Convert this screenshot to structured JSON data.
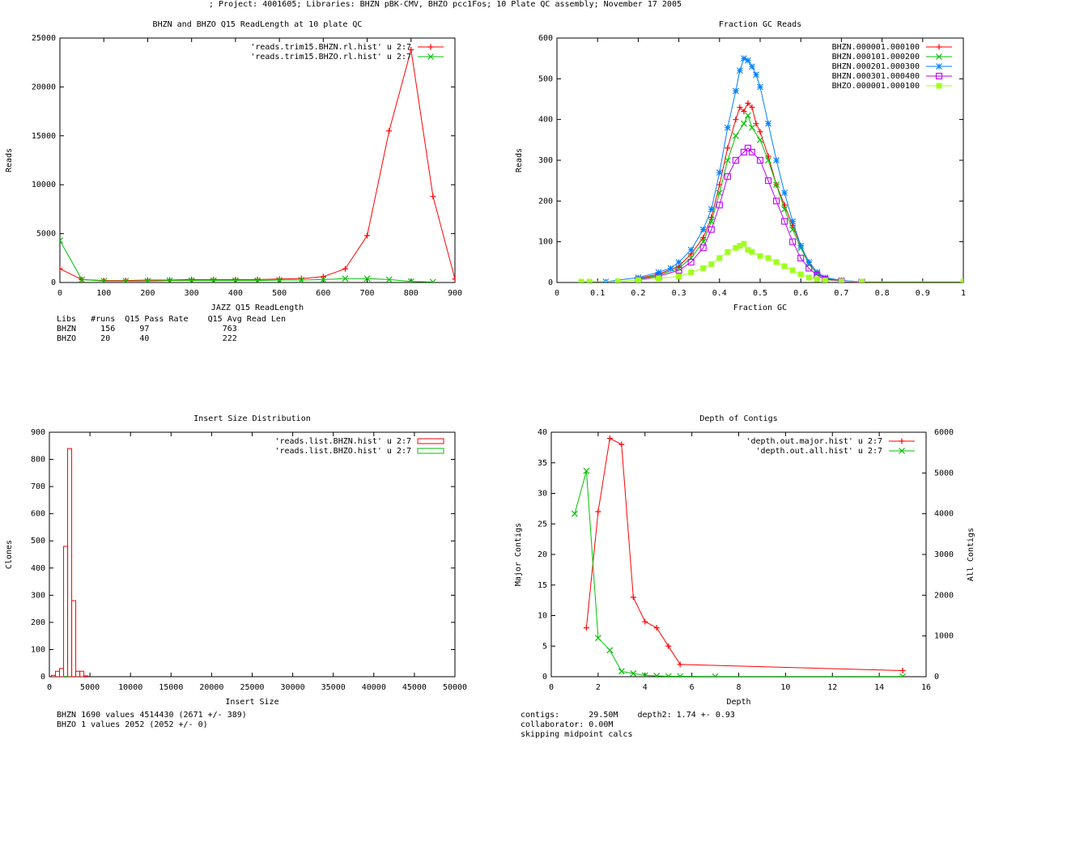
{
  "page_title": "; Project: 4001605; Libraries: BHZN pBK-CMV, BHZO pcc1Fos; 10 Plate QC assembly; November 17 2005",
  "colors": {
    "red": "#ff0000",
    "green": "#00c000",
    "blue": "#0080ff",
    "magenta": "#c000ff",
    "lime": "#a0ff20"
  },
  "chart_data": [
    {
      "id": "readlength",
      "type": "line",
      "title": "BHZN and BHZO Q15 ReadLength at 10 plate QC",
      "xlabel": "JAZZ Q15 ReadLength",
      "ylabel": "Reads",
      "xlim": [
        0,
        900
      ],
      "ylim": [
        0,
        25000
      ],
      "xticks": [
        0,
        100,
        200,
        300,
        400,
        500,
        600,
        700,
        800,
        900
      ],
      "yticks": [
        0,
        5000,
        10000,
        15000,
        20000,
        25000
      ],
      "legend_position": "top-right",
      "series": [
        {
          "name": "'reads.trim15.BHZN.rl.hist' u 2:7",
          "color": "red",
          "marker": "plus",
          "x": [
            0,
            50,
            100,
            150,
            200,
            250,
            300,
            350,
            400,
            450,
            500,
            550,
            600,
            650,
            700,
            750,
            800,
            850,
            900
          ],
          "y": [
            1400,
            300,
            200,
            200,
            250,
            250,
            300,
            300,
            300,
            300,
            350,
            400,
            600,
            1400,
            4800,
            15500,
            23800,
            8800,
            350
          ]
        },
        {
          "name": "'reads.trim15.BHZO.rl.hist' u 2:7",
          "color": "green",
          "marker": "cross",
          "x": [
            0,
            50,
            100,
            150,
            200,
            250,
            300,
            350,
            400,
            450,
            500,
            550,
            600,
            650,
            700,
            750,
            800,
            850
          ],
          "y": [
            4300,
            300,
            150,
            150,
            150,
            200,
            200,
            200,
            200,
            200,
            250,
            250,
            300,
            400,
            400,
            300,
            100,
            50
          ]
        }
      ],
      "stats": {
        "columns": [
          "Libs",
          "#runs",
          "Q15 Pass Rate",
          "Q15 Avg Read Len"
        ],
        "rows": [
          [
            "BHZN",
            "156",
            "97",
            "763"
          ],
          [
            "BHZO",
            "20",
            "40",
            "222"
          ]
        ]
      }
    },
    {
      "id": "gc",
      "type": "line",
      "title": "Fraction GC Reads",
      "xlabel": "Fraction GC",
      "ylabel": "Reads",
      "xlim": [
        0,
        1
      ],
      "ylim": [
        0,
        600
      ],
      "xticks": [
        0,
        0.1,
        0.2,
        0.3,
        0.4,
        0.5,
        0.6,
        0.7,
        0.8,
        0.9,
        1
      ],
      "yticks": [
        0,
        100,
        200,
        300,
        400,
        500,
        600
      ],
      "legend_position": "top-right",
      "series": [
        {
          "name": "BHZN.000001.000100",
          "color": "red",
          "marker": "plus",
          "x": [
            0.2,
            0.25,
            0.3,
            0.33,
            0.36,
            0.38,
            0.4,
            0.42,
            0.44,
            0.45,
            0.46,
            0.47,
            0.48,
            0.49,
            0.5,
            0.52,
            0.54,
            0.56,
            0.58,
            0.6,
            0.62,
            0.64,
            0.66,
            0.7,
            0.75
          ],
          "y": [
            10,
            20,
            40,
            70,
            110,
            160,
            240,
            330,
            400,
            430,
            420,
            440,
            430,
            390,
            370,
            310,
            240,
            190,
            140,
            90,
            50,
            25,
            12,
            5,
            2
          ]
        },
        {
          "name": "BHZN.000101.000200",
          "color": "green",
          "marker": "cross",
          "x": [
            0.2,
            0.25,
            0.3,
            0.33,
            0.36,
            0.38,
            0.4,
            0.42,
            0.44,
            0.46,
            0.47,
            0.48,
            0.5,
            0.52,
            0.54,
            0.56,
            0.58,
            0.6,
            0.62,
            0.64,
            0.66,
            0.7,
            0.75
          ],
          "y": [
            8,
            18,
            35,
            60,
            100,
            150,
            220,
            300,
            360,
            390,
            410,
            380,
            350,
            300,
            240,
            180,
            130,
            85,
            45,
            22,
            10,
            4,
            2
          ]
        },
        {
          "name": "BHZN.000201.000300",
          "color": "blue",
          "marker": "star",
          "x": [
            0.12,
            0.2,
            0.25,
            0.28,
            0.3,
            0.33,
            0.36,
            0.38,
            0.4,
            0.42,
            0.44,
            0.45,
            0.46,
            0.47,
            0.48,
            0.49,
            0.5,
            0.52,
            0.54,
            0.56,
            0.58,
            0.6,
            0.62,
            0.64,
            0.66,
            0.7,
            0.75
          ],
          "y": [
            2,
            12,
            25,
            35,
            50,
            80,
            130,
            180,
            270,
            380,
            470,
            520,
            550,
            545,
            530,
            510,
            480,
            390,
            300,
            220,
            150,
            90,
            50,
            25,
            12,
            5,
            2
          ]
        },
        {
          "name": "BHZN.000301.000400",
          "color": "magenta",
          "marker": "square",
          "x": [
            0.2,
            0.25,
            0.3,
            0.33,
            0.36,
            0.38,
            0.4,
            0.42,
            0.44,
            0.46,
            0.47,
            0.48,
            0.5,
            0.52,
            0.54,
            0.56,
            0.58,
            0.6,
            0.62,
            0.64,
            0.66,
            0.7,
            0.75
          ],
          "y": [
            6,
            15,
            30,
            50,
            85,
            130,
            190,
            260,
            300,
            320,
            330,
            320,
            300,
            250,
            200,
            150,
            100,
            60,
            35,
            18,
            8,
            3,
            1
          ]
        },
        {
          "name": "BHZO.000001.000100",
          "color": "lime",
          "marker": "filled-square",
          "x": [
            0.06,
            0.08,
            0.15,
            0.2,
            0.25,
            0.3,
            0.33,
            0.36,
            0.38,
            0.4,
            0.42,
            0.44,
            0.45,
            0.46,
            0.47,
            0.48,
            0.5,
            0.52,
            0.54,
            0.56,
            0.58,
            0.6,
            0.62,
            0.64,
            0.66,
            0.7,
            0.75,
            1
          ],
          "y": [
            2,
            2,
            3,
            6,
            10,
            15,
            25,
            35,
            45,
            60,
            75,
            85,
            90,
            95,
            80,
            75,
            65,
            60,
            50,
            40,
            30,
            20,
            12,
            8,
            5,
            3,
            2,
            2
          ]
        }
      ]
    },
    {
      "id": "insert",
      "type": "bar",
      "title": "Insert Size Distribution",
      "xlabel": "Insert Size",
      "ylabel": "Clones",
      "xlim": [
        0,
        50000
      ],
      "ylim": [
        0,
        900
      ],
      "xticks": [
        0,
        5000,
        10000,
        15000,
        20000,
        25000,
        30000,
        35000,
        40000,
        45000,
        50000
      ],
      "yticks": [
        0,
        100,
        200,
        300,
        400,
        500,
        600,
        700,
        800,
        900
      ],
      "legend_position": "top-right",
      "bin_width": 500,
      "series": [
        {
          "name": "'reads.list.BHZN.hist' u 2:7",
          "color": "red",
          "x": [
            500,
            1000,
            1500,
            2000,
            2500,
            3000,
            3500,
            4000,
            4500
          ],
          "y": [
            5,
            20,
            30,
            480,
            840,
            280,
            20,
            20,
            3
          ]
        },
        {
          "name": "'reads.list.BHZO.hist' u 2:7",
          "color": "green",
          "x": [
            2000
          ],
          "y": [
            1
          ]
        }
      ],
      "stats_lines": [
        "BHZN 1690 values 4514430 (2671 +/- 389)",
        "BHZO 1 values 2052 (2052 +/- 0)"
      ]
    },
    {
      "id": "depth",
      "type": "line",
      "title": "Depth of Contigs",
      "xlabel": "Depth",
      "ylabel": "Major Contigs",
      "y2label": "All Contigs",
      "xlim": [
        0,
        16
      ],
      "ylim": [
        0,
        40
      ],
      "y2lim": [
        0,
        6000
      ],
      "xticks": [
        0,
        2,
        4,
        6,
        8,
        10,
        12,
        14,
        16
      ],
      "yticks": [
        0,
        5,
        10,
        15,
        20,
        25,
        30,
        35,
        40
      ],
      "y2ticks": [
        0,
        1000,
        2000,
        3000,
        4000,
        5000,
        6000
      ],
      "legend_position": "top-right",
      "series": [
        {
          "name": "'depth.out.major.hist' u 2:7",
          "color": "red",
          "marker": "plus",
          "axis": "y",
          "x": [
            1.5,
            2,
            2.5,
            3,
            3.5,
            4,
            4.5,
            5,
            5.5,
            15
          ],
          "y": [
            8,
            27,
            39,
            38,
            13,
            9,
            8,
            5,
            2,
            1
          ]
        },
        {
          "name": "'depth.out.all.hist' u 2:7",
          "color": "green",
          "marker": "cross",
          "axis": "y2",
          "x": [
            1,
            1.5,
            2,
            2.5,
            3,
            3.5,
            4,
            4.5,
            5,
            5.5,
            7,
            15
          ],
          "y": [
            4000,
            5050,
            950,
            650,
            130,
            80,
            30,
            20,
            10,
            10,
            5,
            5
          ]
        }
      ],
      "stats_lines": [
        "contigs:      29.50M    depth2: 1.74 +- 0.93",
        "collaborator: 0.00M",
        "skipping midpoint calcs"
      ]
    }
  ]
}
